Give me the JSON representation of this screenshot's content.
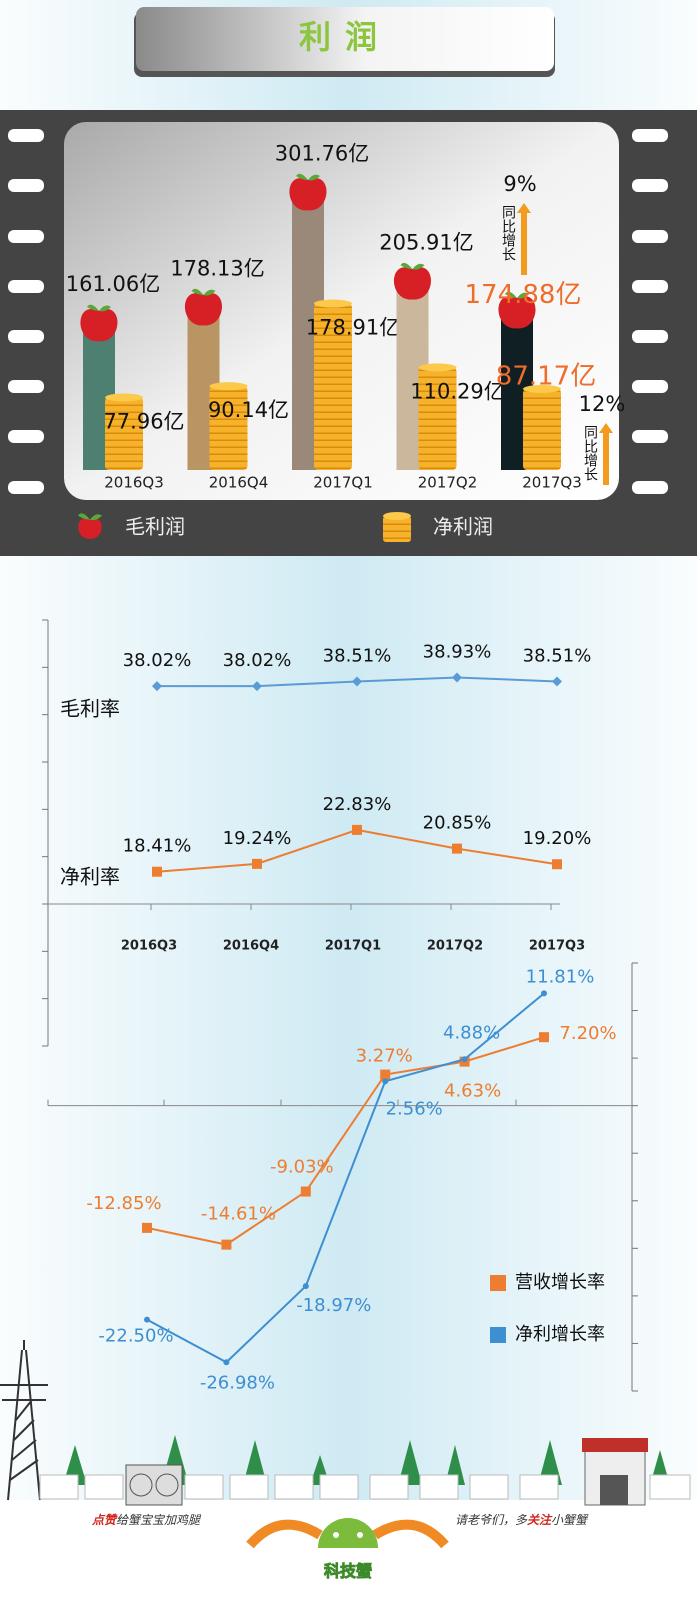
{
  "title": "利润",
  "chart_data": [
    {
      "type": "bar",
      "categories": [
        "2016Q3",
        "2016Q4",
        "2017Q1",
        "2017Q2",
        "2017Q3"
      ],
      "ylim": [
        0,
        330
      ],
      "series": [
        {
          "name": "毛利润",
          "colors": [
            "#4e8072",
            "#b89563",
            "#9a8878",
            "#cbb79b",
            "#0f1f24"
          ],
          "values": [
            161.06,
            178.13,
            301.76,
            205.91,
            174.88
          ],
          "value_labels": [
            "161.06亿",
            "178.13亿",
            "301.76亿",
            "205.91亿",
            "174.88亿"
          ]
        },
        {
          "name": "净利润",
          "color": "#f2a51e",
          "values": [
            77.96,
            90.14,
            178.91,
            110.29,
            87.17
          ],
          "value_labels": [
            "77.96亿",
            "90.14亿",
            "178.91亿",
            "110.29亿",
            "87.17亿"
          ]
        }
      ],
      "annotations": [
        {
          "text": "9%",
          "label": "同比增长"
        },
        {
          "text": "12%",
          "label": "同比增长"
        }
      ]
    },
    {
      "type": "line",
      "categories": [
        "2016Q3",
        "2016Q4",
        "2017Q1",
        "2017Q2",
        "2017Q3"
      ],
      "ylim": [
        0,
        45
      ],
      "yticks": [
        0,
        5,
        10,
        15,
        20,
        25,
        30,
        35,
        40,
        45
      ],
      "series": [
        {
          "name": "毛利率",
          "color": "#5b9bd5",
          "marker": "diamond",
          "values": [
            38.02,
            38.02,
            38.51,
            38.93,
            38.51
          ],
          "value_labels": [
            "38.02%",
            "38.02%",
            "38.51%",
            "38.93%",
            "38.51%"
          ]
        },
        {
          "name": "净利率",
          "color": "#ed7d31",
          "marker": "square",
          "values": [
            18.41,
            19.24,
            22.83,
            20.85,
            19.2
          ],
          "value_labels": [
            "18.41%",
            "19.24%",
            "22.83%",
            "20.85%",
            "19.20%"
          ]
        }
      ]
    },
    {
      "type": "line",
      "categories": [
        null,
        null,
        null,
        null,
        null,
        null
      ],
      "ylim": [
        -30,
        15
      ],
      "yticks": [
        -30,
        -25,
        -20,
        -15,
        -10,
        -5,
        0,
        5,
        10,
        15
      ],
      "series": [
        {
          "name": "营收增长率",
          "color": "#ed7d31",
          "marker": "square",
          "values": [
            -12.85,
            -14.61,
            -9.03,
            3.27,
            4.63,
            7.2
          ],
          "value_labels": [
            "-12.85%",
            "-14.61%",
            "-9.03%",
            "3.27%",
            "4.63%",
            "7.20%"
          ]
        },
        {
          "name": "净利增长率",
          "color": "#3d8fd1",
          "marker": "circle",
          "values": [
            -22.5,
            -26.98,
            -18.97,
            2.56,
            4.88,
            11.81
          ],
          "value_labels": [
            "-22.50%",
            "-26.98%",
            "-18.97%",
            "2.56%",
            "4.88%",
            "11.81%"
          ]
        }
      ]
    }
  ],
  "footer": {
    "left": [
      "点赞",
      "给蟹宝宝加鸡腿"
    ],
    "right": [
      "请老爷们，多",
      "关注",
      "小蟹蟹"
    ],
    "logo": "科技蟹"
  }
}
